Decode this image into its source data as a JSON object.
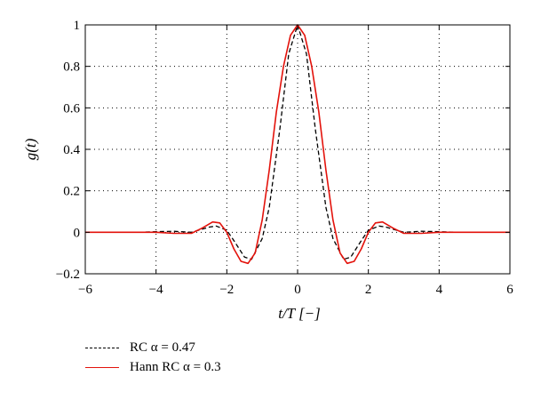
{
  "chart_data": {
    "type": "line",
    "xlabel": "t/T [−]",
    "ylabel": "g(t)",
    "xlim": [
      -6,
      6
    ],
    "ylim": [
      -0.2,
      1
    ],
    "xticks": [
      -6,
      -4,
      -2,
      0,
      2,
      4,
      6
    ],
    "yticks": [
      -0.2,
      0,
      0.2,
      0.4,
      0.6,
      0.8,
      1
    ],
    "grid": true,
    "legend_position": "below",
    "series": [
      {
        "name": "RC α = 0.47",
        "color": "#000000",
        "style": "dashed",
        "x": [
          -4.5,
          -4.0,
          -3.5,
          -3.0,
          -2.5,
          -2.3,
          -2.0,
          -1.8,
          -1.5,
          -1.3,
          -1.0,
          -0.8,
          -0.5,
          -0.25,
          0,
          0.25,
          0.5,
          0.8,
          1.0,
          1.3,
          1.5,
          1.8,
          2.0,
          2.3,
          2.5,
          3.0,
          3.5,
          4.0,
          4.5
        ],
        "y": [
          0,
          0.003,
          0.005,
          0,
          0.025,
          0.03,
          0.01,
          -0.04,
          -0.12,
          -0.13,
          -0.03,
          0.12,
          0.5,
          0.86,
          1.0,
          0.86,
          0.5,
          0.12,
          -0.03,
          -0.13,
          -0.12,
          -0.04,
          0.01,
          0.03,
          0.025,
          0,
          0.005,
          0.003,
          0
        ]
      },
      {
        "name": "Hann RC α = 0.3",
        "color": "#e3120b",
        "style": "solid",
        "x": [
          -6.0,
          -5.0,
          -4.0,
          -3.5,
          -3.0,
          -2.7,
          -2.4,
          -2.2,
          -2.0,
          -1.8,
          -1.6,
          -1.4,
          -1.2,
          -1.0,
          -0.8,
          -0.6,
          -0.4,
          -0.2,
          0,
          0.2,
          0.4,
          0.6,
          0.8,
          1.0,
          1.2,
          1.4,
          1.6,
          1.8,
          2.0,
          2.2,
          2.4,
          2.7,
          3.0,
          3.5,
          4.0,
          5.0,
          6.0
        ],
        "y": [
          0,
          0,
          0,
          -0.005,
          -0.005,
          0.02,
          0.05,
          0.045,
          0.0,
          -0.08,
          -0.14,
          -0.15,
          -0.1,
          0.06,
          0.3,
          0.58,
          0.8,
          0.95,
          1.0,
          0.95,
          0.8,
          0.58,
          0.3,
          0.06,
          -0.1,
          -0.15,
          -0.14,
          -0.08,
          0.0,
          0.045,
          0.05,
          0.02,
          -0.005,
          -0.005,
          0,
          0,
          0
        ]
      }
    ]
  }
}
